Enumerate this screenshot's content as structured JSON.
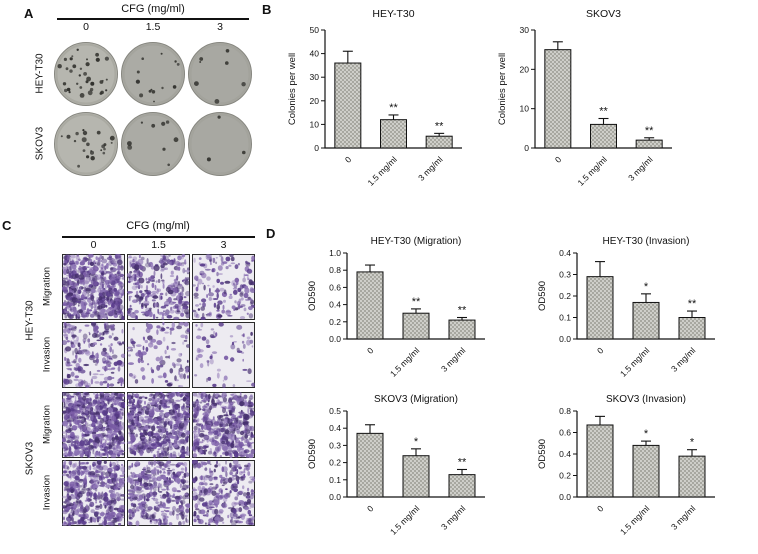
{
  "panels": {
    "A": {
      "label": "A",
      "header": "CFG (mg/ml)",
      "doses": [
        "0",
        "1.5",
        "3"
      ],
      "rows": [
        {
          "label": "HEY-T30",
          "colony_dots": [
            34,
            13,
            7
          ]
        },
        {
          "label": "SKOV3",
          "colony_dots": [
            22,
            9,
            3
          ]
        }
      ]
    },
    "B": {
      "label": "B"
    },
    "C": {
      "label": "C",
      "header": "CFG (mg/ml)",
      "doses": [
        "0",
        "1.5",
        "3"
      ],
      "cell_lines": [
        {
          "label": "HEY-T30",
          "assays": [
            {
              "label": "Migration",
              "densities": [
                520,
                260,
                150
              ]
            },
            {
              "label": "Invasion",
              "densities": [
                200,
                110,
                60
              ]
            }
          ]
        },
        {
          "label": "SKOV3",
          "assays": [
            {
              "label": "Migration",
              "densities": [
                620,
                500,
                430
              ]
            },
            {
              "label": "Invasion",
              "densities": [
                430,
                330,
                260
              ]
            }
          ]
        }
      ]
    },
    "D": {
      "label": "D"
    }
  },
  "chart_data": [
    {
      "id": "chartB1",
      "type": "bar",
      "panel": "B",
      "title": "HEY-T30",
      "ylabel": "Colonies per well",
      "categories": [
        "0",
        "1.5 mg/ml",
        "3 mg/ml"
      ],
      "values": [
        36,
        12,
        5
      ],
      "errors": [
        5,
        2,
        1.2
      ],
      "significance": [
        "",
        "**",
        "**"
      ],
      "ylim": [
        0,
        50
      ],
      "yticks": [
        "0",
        "10",
        "20",
        "30",
        "40",
        "50"
      ]
    },
    {
      "id": "chartB2",
      "type": "bar",
      "panel": "B",
      "title": "SKOV3",
      "ylabel": "Colonies per well",
      "categories": [
        "0",
        "1.5 mg/ml",
        "3 mg/ml"
      ],
      "values": [
        25,
        6,
        2
      ],
      "errors": [
        2,
        1.5,
        0.6
      ],
      "significance": [
        "",
        "**",
        "**"
      ],
      "ylim": [
        0,
        30
      ],
      "yticks": [
        "0",
        "10",
        "20",
        "30"
      ]
    },
    {
      "id": "chartD1",
      "type": "bar",
      "panel": "D",
      "title": "HEY-T30 (Migration)",
      "ylabel": "OD590",
      "categories": [
        "0",
        "1.5 mg/ml",
        "3 mg/ml"
      ],
      "values": [
        0.78,
        0.3,
        0.22
      ],
      "errors": [
        0.08,
        0.05,
        0.03
      ],
      "significance": [
        "",
        "**",
        "**"
      ],
      "ylim": [
        0,
        1.0
      ],
      "yticks": [
        "0.0",
        "0.2",
        "0.4",
        "0.6",
        "0.8",
        "1.0"
      ]
    },
    {
      "id": "chartD2",
      "type": "bar",
      "panel": "D",
      "title": "HEY-T30 (Invasion)",
      "ylabel": "OD590",
      "categories": [
        "0",
        "1.5 mg/ml",
        "3 mg/ml"
      ],
      "values": [
        0.29,
        0.17,
        0.1
      ],
      "errors": [
        0.07,
        0.04,
        0.03
      ],
      "significance": [
        "",
        "*",
        "**"
      ],
      "ylim": [
        0,
        0.4
      ],
      "yticks": [
        "0.0",
        "0.1",
        "0.2",
        "0.3",
        "0.4"
      ]
    },
    {
      "id": "chartD3",
      "type": "bar",
      "panel": "D",
      "title": "SKOV3 (Migration)",
      "ylabel": "OD590",
      "categories": [
        "0",
        "1.5 mg/ml",
        "3 mg/ml"
      ],
      "values": [
        0.37,
        0.24,
        0.13
      ],
      "errors": [
        0.05,
        0.04,
        0.03
      ],
      "significance": [
        "",
        "*",
        "**"
      ],
      "ylim": [
        0,
        0.5
      ],
      "yticks": [
        "0.0",
        "0.1",
        "0.2",
        "0.3",
        "0.4",
        "0.5"
      ]
    },
    {
      "id": "chartD4",
      "type": "bar",
      "panel": "D",
      "title": "SKOV3 (Invasion)",
      "ylabel": "OD590",
      "categories": [
        "0",
        "1.5 mg/ml",
        "3 mg/ml"
      ],
      "values": [
        0.67,
        0.48,
        0.38
      ],
      "errors": [
        0.08,
        0.04,
        0.06
      ],
      "significance": [
        "",
        "*",
        "*"
      ],
      "ylim": [
        0,
        0.8
      ],
      "yticks": [
        "0.0",
        "0.2",
        "0.4",
        "0.6",
        "0.8"
      ]
    }
  ],
  "colors": {
    "axis": "#111111",
    "bar_fill": "#d6d6d1",
    "bar_hatch": "#97978f",
    "well_fills": [
      "#b6b6af",
      "#abab a5",
      "#a8a8a2"
    ],
    "well_fill_0": "#b6b6af",
    "well_fill_1": "#ababa5",
    "well_fill_2": "#a8a8a2",
    "well_dot": "#32322e",
    "stain_bg": "#edebf1",
    "stain_palette": [
      "#7a5ca6",
      "#5a3d8c",
      "#8d74b5",
      "#46306e"
    ]
  }
}
